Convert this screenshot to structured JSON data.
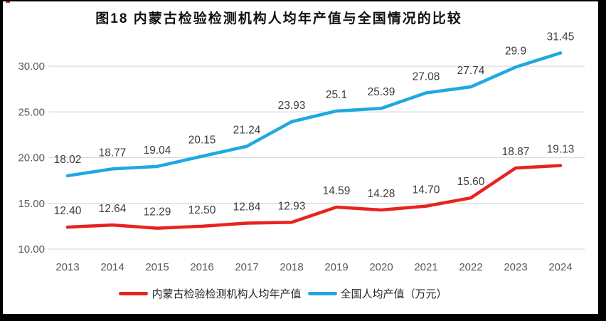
{
  "chart_data": {
    "type": "line",
    "title": "图18 内蒙古检验检测机构人均年产值与全国情况的比较",
    "categories": [
      "2013",
      "2014",
      "2015",
      "2016",
      "2017",
      "2018",
      "2019",
      "2020",
      "2021",
      "2022",
      "2023",
      "2024"
    ],
    "series": [
      {
        "name": "内蒙古检验检测机构人均年产值",
        "color": "#e8231e",
        "values": [
          12.4,
          12.64,
          12.29,
          12.5,
          12.84,
          12.93,
          14.59,
          14.28,
          14.7,
          15.6,
          18.87,
          19.13
        ],
        "labels": [
          "12.40",
          "12.64",
          "12.29",
          "12.50",
          "12.84",
          "12.93",
          "14.59",
          "14.28",
          "14.70",
          "15.60",
          "18.87",
          "19.13"
        ]
      },
      {
        "name": "全国人均产值（万元）",
        "color": "#1fa8e1",
        "values": [
          18.02,
          18.77,
          19.04,
          20.15,
          21.24,
          23.93,
          25.1,
          25.39,
          27.08,
          27.74,
          29.9,
          31.45
        ],
        "labels": [
          "18.02",
          "18.77",
          "19.04",
          "20.15",
          "21.24",
          "23.93",
          "25.1",
          "25.39",
          "27.08",
          "27.74",
          "29.9",
          "31.45"
        ]
      }
    ],
    "yticks": [
      {
        "label": "10.00",
        "value": 10
      },
      {
        "label": "15.00",
        "value": 15
      },
      {
        "label": "20.00",
        "value": 20
      },
      {
        "label": "25.00",
        "value": 25
      },
      {
        "label": "30.00",
        "value": 30
      }
    ],
    "ylim": [
      10,
      32.5
    ],
    "grid": "horizontal-only",
    "legend_position": "bottom",
    "colors": {
      "gridline": "#d9d9d9",
      "tick_label": "#595959",
      "data_label": "#3d3d3d"
    }
  }
}
